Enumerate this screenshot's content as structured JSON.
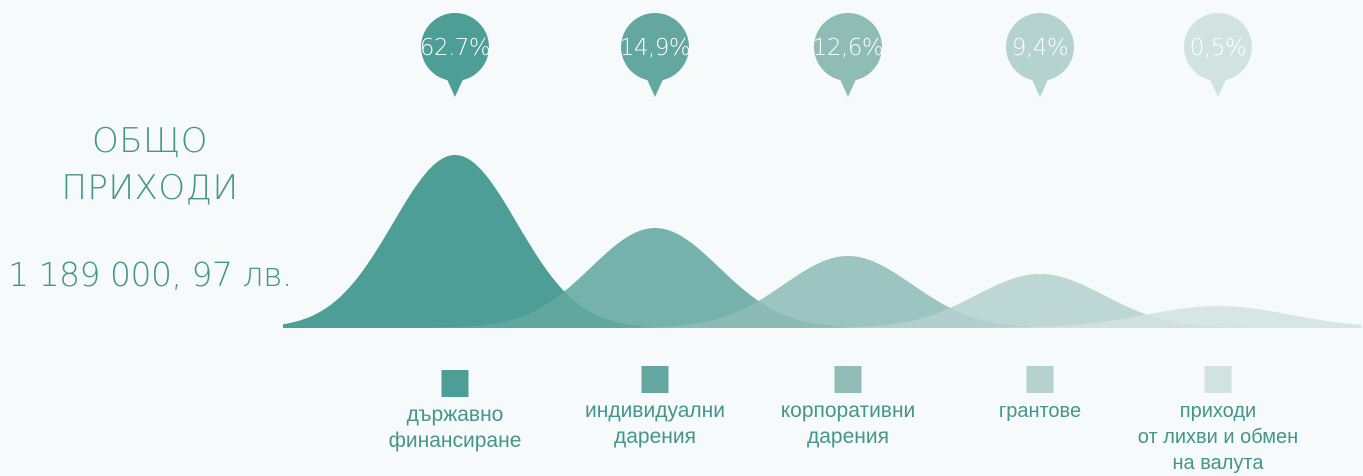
{
  "total": {
    "title_line1": "ОБЩО",
    "title_line2": "ПРИХОДИ",
    "amount": "1 189 000, 97 лв."
  },
  "chart_data": {
    "type": "area",
    "unit": "%",
    "series": [
      {
        "name": "държавно финансиране",
        "label_lines": [
          "държавно",
          "финансиране"
        ],
        "value_label": "62.7%",
        "value": 62.7,
        "color": "#4d9e96"
      },
      {
        "name": "индивидуални дарения",
        "label_lines": [
          "индивидуални",
          "дарения"
        ],
        "value_label": "14,9%",
        "value": 14.9,
        "color": "#64a7a0"
      },
      {
        "name": "корпоративни дарения",
        "label_lines": [
          "корпоративни",
          "дарения"
        ],
        "value_label": "12,6%",
        "value": 12.6,
        "color": "#8fbcb7"
      },
      {
        "name": "грантове",
        "label_lines": [
          "грантове"
        ],
        "value_label": "9,4%",
        "value": 9.4,
        "color": "#b4d2ce"
      },
      {
        "name": "приходи от лихви и обмен на валута",
        "label_lines": [
          "приходи",
          "от лихви и обмен",
          "на валута"
        ],
        "value_label": "0,5%",
        "value": 0.5,
        "color": "#d1e3e0"
      }
    ]
  }
}
